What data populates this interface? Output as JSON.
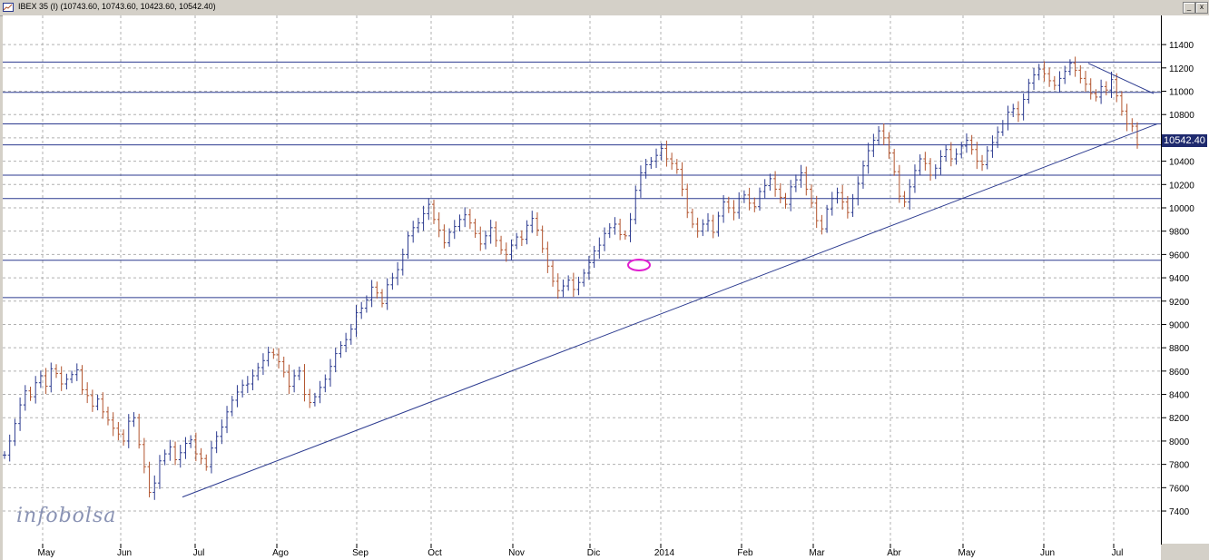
{
  "window": {
    "title": "IBEX 35 (I) (10743.60, 10743.60, 10423.60, 10542.40)",
    "buttons": [
      "_",
      "x"
    ]
  },
  "watermark": "infobolsa",
  "colors": {
    "up": "#2b3a8f",
    "down": "#b2542e",
    "grid": "#b0b0b0",
    "hline": "#2b3a8f",
    "trend": "#2b3a8f",
    "highlight": "#e020d0",
    "badge": "#1e2a6e"
  },
  "chart_data": {
    "type": "ohlc",
    "title": "IBEX 35 (I)",
    "last_price": "10542.40",
    "ylim": [
      7120,
      11650
    ],
    "y_ticks": [
      7400,
      7600,
      7800,
      8000,
      8200,
      8400,
      8600,
      8800,
      9000,
      9200,
      9400,
      9600,
      9800,
      10000,
      10200,
      10400,
      10600,
      10800,
      11000,
      11200,
      11400
    ],
    "x_labels": [
      "May",
      "Jun",
      "Jul",
      "Ago",
      "Sep",
      "Oct",
      "Nov",
      "Dic",
      "2014",
      "Feb",
      "Mar",
      "Abr",
      "May",
      "Jun",
      "Jul"
    ],
    "horizontal_levels": [
      9230,
      9550,
      10080,
      10280,
      10540,
      10720,
      10990,
      11250
    ],
    "trendlines": [
      {
        "from_label": "Jun",
        "from_value": 7520,
        "to_label": "Jul",
        "to_value": 10720
      },
      {
        "from_label": "Jun",
        "from_value": 11240,
        "to_label": "Jul",
        "to_value": 10980
      }
    ],
    "highlight": {
      "label": "Dic",
      "value": 9510
    },
    "closes": [
      7880,
      8000,
      8150,
      8310,
      8430,
      8380,
      8500,
      8560,
      8470,
      8620,
      8580,
      8490,
      8530,
      8570,
      8610,
      8440,
      8390,
      8300,
      8360,
      8250,
      8180,
      8110,
      8060,
      8000,
      8170,
      8200,
      7970,
      7780,
      7560,
      7640,
      7830,
      7890,
      7950,
      7840,
      7900,
      7980,
      8010,
      7890,
      7850,
      7780,
      7940,
      8040,
      8120,
      8250,
      8350,
      8420,
      8480,
      8490,
      8560,
      8630,
      8690,
      8760,
      8740,
      8680,
      8590,
      8470,
      8560,
      8600,
      8400,
      8330,
      8380,
      8460,
      8530,
      8640,
      8750,
      8820,
      8870,
      8960,
      9100,
      9140,
      9210,
      9320,
      9270,
      9180,
      9340,
      9400,
      9470,
      9600,
      9760,
      9830,
      9870,
      9950,
      10030,
      9900,
      9810,
      9700,
      9790,
      9840,
      9900,
      9940,
      9870,
      9780,
      9690,
      9760,
      9830,
      9720,
      9640,
      9600,
      9680,
      9750,
      9730,
      9850,
      9910,
      9810,
      9650,
      9500,
      9370,
      9290,
      9330,
      9380,
      9300,
      9360,
      9440,
      9530,
      9630,
      9680,
      9780,
      9830,
      9860,
      9770,
      9760,
      9900,
      10150,
      10300,
      10370,
      10400,
      10450,
      10510,
      10420,
      10380,
      10330,
      10160,
      9960,
      9860,
      9800,
      9860,
      9890,
      9790,
      9930,
      10050,
      10000,
      9960,
      10080,
      10110,
      10040,
      10010,
      10140,
      10190,
      10250,
      10160,
      10090,
      10030,
      10180,
      10240,
      10300,
      10160,
      10040,
      9890,
      9820,
      9990,
      10080,
      10130,
      10050,
      9960,
      10080,
      10210,
      10360,
      10490,
      10580,
      10660,
      10600,
      10470,
      10310,
      10100,
      10050,
      10180,
      10320,
      10420,
      10380,
      10280,
      10340,
      10440,
      10500,
      10420,
      10460,
      10530,
      10580,
      10500,
      10400,
      10370,
      10490,
      10560,
      10650,
      10720,
      10820,
      10850,
      10800,
      10930,
      11070,
      11140,
      11190,
      11150,
      11090,
      11050,
      11110,
      11170,
      11240,
      11180,
      11110,
      11060,
      10980,
      10950,
      11040,
      11010,
      11100,
      10960,
      10830,
      10720,
      10700,
      10542
    ]
  }
}
